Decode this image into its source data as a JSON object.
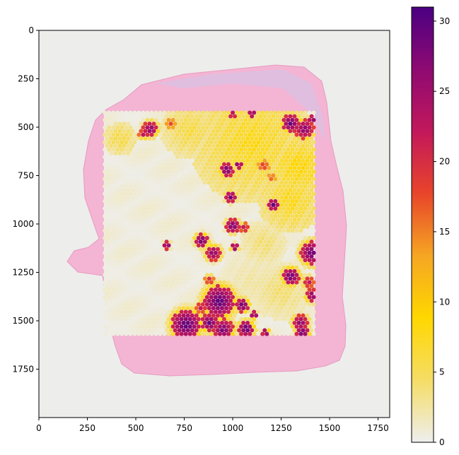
{
  "chart_data": {
    "type": "heatmap",
    "title": "",
    "xlabel": "",
    "ylabel": "",
    "xlim": [
      0,
      1810
    ],
    "ylim": [
      2000,
      0
    ],
    "x_ticks": [
      0,
      250,
      500,
      750,
      1000,
      1250,
      1500,
      1750
    ],
    "y_ticks": [
      0,
      250,
      500,
      750,
      1000,
      1250,
      1500,
      1750
    ],
    "colorbar": {
      "range": [
        0,
        31
      ],
      "ticks": [
        0,
        5,
        10,
        15,
        20,
        25,
        30
      ],
      "colormap": [
        "#eeeeee",
        "#f5dd66",
        "#ffd700",
        "#f5a623",
        "#e8452a",
        "#c2185b",
        "#8e0a72",
        "#4b0082"
      ]
    },
    "spot_grid": {
      "x_range": [
        340,
        1425
      ],
      "y_range": [
        425,
        1570
      ],
      "spacing": 22
    },
    "tissue_color": "#f3b5d3",
    "high_clusters": [
      {
        "x": 575,
        "y": 510,
        "r": 40,
        "v": 28
      },
      {
        "x": 540,
        "y": 535,
        "r": 25,
        "v": 24
      },
      {
        "x": 680,
        "y": 480,
        "r": 30,
        "v": 18
      },
      {
        "x": 1100,
        "y": 430,
        "r": 20,
        "v": 30
      },
      {
        "x": 1000,
        "y": 435,
        "r": 18,
        "v": 28
      },
      {
        "x": 1300,
        "y": 480,
        "r": 45,
        "v": 30
      },
      {
        "x": 1370,
        "y": 510,
        "r": 50,
        "v": 28
      },
      {
        "x": 1410,
        "y": 460,
        "r": 20,
        "v": 30
      },
      {
        "x": 970,
        "y": 720,
        "r": 35,
        "v": 30
      },
      {
        "x": 1030,
        "y": 695,
        "r": 20,
        "v": 30
      },
      {
        "x": 1160,
        "y": 700,
        "r": 30,
        "v": 20
      },
      {
        "x": 1200,
        "y": 760,
        "r": 25,
        "v": 18
      },
      {
        "x": 990,
        "y": 860,
        "r": 30,
        "v": 29
      },
      {
        "x": 1210,
        "y": 900,
        "r": 30,
        "v": 30
      },
      {
        "x": 1000,
        "y": 1010,
        "r": 35,
        "v": 30
      },
      {
        "x": 1060,
        "y": 1020,
        "r": 25,
        "v": 24
      },
      {
        "x": 840,
        "y": 1085,
        "r": 35,
        "v": 30
      },
      {
        "x": 900,
        "y": 1150,
        "r": 40,
        "v": 28
      },
      {
        "x": 1010,
        "y": 1120,
        "r": 20,
        "v": 30
      },
      {
        "x": 660,
        "y": 1110,
        "r": 20,
        "v": 30
      },
      {
        "x": 1410,
        "y": 1150,
        "r": 60,
        "v": 30
      },
      {
        "x": 1300,
        "y": 1270,
        "r": 45,
        "v": 30
      },
      {
        "x": 1390,
        "y": 1300,
        "r": 30,
        "v": 24
      },
      {
        "x": 1410,
        "y": 1370,
        "r": 35,
        "v": 28
      },
      {
        "x": 880,
        "y": 1290,
        "r": 25,
        "v": 22
      },
      {
        "x": 930,
        "y": 1400,
        "r": 80,
        "v": 31
      },
      {
        "x": 1050,
        "y": 1420,
        "r": 35,
        "v": 30
      },
      {
        "x": 840,
        "y": 1430,
        "r": 30,
        "v": 24
      },
      {
        "x": 1110,
        "y": 1470,
        "r": 20,
        "v": 30
      },
      {
        "x": 760,
        "y": 1520,
        "r": 75,
        "v": 31
      },
      {
        "x": 880,
        "y": 1510,
        "r": 45,
        "v": 30
      },
      {
        "x": 950,
        "y": 1545,
        "r": 55,
        "v": 29
      },
      {
        "x": 1070,
        "y": 1540,
        "r": 40,
        "v": 31
      },
      {
        "x": 1170,
        "y": 1560,
        "r": 20,
        "v": 30
      },
      {
        "x": 1350,
        "y": 1510,
        "r": 40,
        "v": 28
      },
      {
        "x": 1360,
        "y": 1560,
        "r": 35,
        "v": 30
      }
    ],
    "mid_clusters": [
      {
        "x": 1100,
        "y": 580,
        "r": 320,
        "v": 9
      },
      {
        "x": 1340,
        "y": 700,
        "r": 180,
        "v": 10
      },
      {
        "x": 1300,
        "y": 880,
        "r": 170,
        "v": 9
      },
      {
        "x": 780,
        "y": 520,
        "r": 150,
        "v": 7
      },
      {
        "x": 420,
        "y": 560,
        "r": 90,
        "v": 7
      },
      {
        "x": 1160,
        "y": 1100,
        "r": 120,
        "v": 5
      },
      {
        "x": 1250,
        "y": 1350,
        "r": 150,
        "v": 5
      },
      {
        "x": 1100,
        "y": 1300,
        "r": 180,
        "v": 3
      }
    ]
  }
}
